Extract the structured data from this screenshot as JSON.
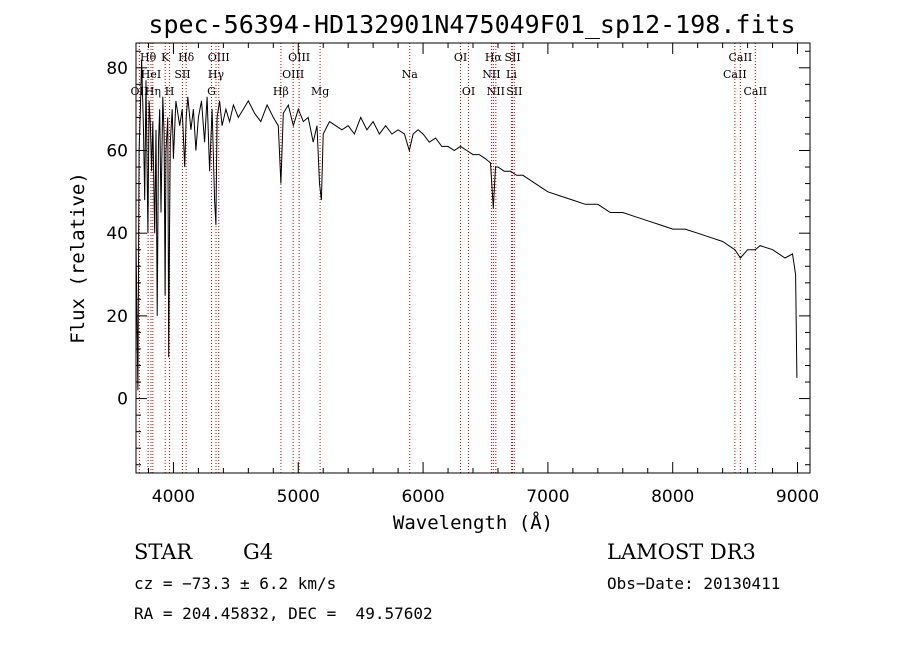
{
  "chart_data": {
    "type": "line",
    "title": "spec-56394-HD132901N475049F01_sp12-198.fits",
    "xlabel": "Wavelength (Å)",
    "ylabel": "Flux (relative)",
    "xlim": [
      3700,
      9100
    ],
    "ylim": [
      -18,
      86
    ],
    "x_ticks": [
      4000,
      5000,
      6000,
      7000,
      8000,
      9000
    ],
    "y_ticks": [
      0,
      20,
      40,
      60,
      80
    ],
    "series": [
      {
        "name": "spectrum",
        "x": [
          3700,
          3715,
          3725,
          3735,
          3745,
          3760,
          3770,
          3780,
          3795,
          3805,
          3815,
          3825,
          3835,
          3850,
          3860,
          3870,
          3880,
          3890,
          3900,
          3915,
          3925,
          3933,
          3940,
          3955,
          3962,
          3968,
          3975,
          3990,
          4000,
          4020,
          4050,
          4070,
          4090,
          4102,
          4115,
          4140,
          4160,
          4180,
          4200,
          4225,
          4250,
          4270,
          4290,
          4310,
          4330,
          4340,
          4350,
          4370,
          4390,
          4420,
          4450,
          4480,
          4520,
          4560,
          4600,
          4650,
          4700,
          4750,
          4800,
          4840,
          4861,
          4880,
          4920,
          4960,
          5000,
          5040,
          5080,
          5120,
          5150,
          5170,
          5185,
          5200,
          5250,
          5300,
          5350,
          5400,
          5450,
          5500,
          5550,
          5600,
          5650,
          5700,
          5750,
          5800,
          5850,
          5890,
          5920,
          5960,
          6000,
          6050,
          6100,
          6150,
          6200,
          6250,
          6300,
          6350,
          6400,
          6450,
          6500,
          6540,
          6563,
          6580,
          6600,
          6650,
          6700,
          6750,
          6800,
          6850,
          6900,
          6950,
          7000,
          7100,
          7200,
          7300,
          7400,
          7500,
          7600,
          7700,
          7800,
          7900,
          8000,
          8100,
          8200,
          8300,
          8400,
          8498,
          8542,
          8600,
          8662,
          8700,
          8800,
          8900,
          8960,
          8985,
          8995
        ],
        "values": [
          38,
          2,
          60,
          70,
          82,
          65,
          48,
          77,
          40,
          72,
          66,
          55,
          67,
          40,
          65,
          20,
          62,
          70,
          45,
          73,
          64,
          25,
          60,
          68,
          10,
          40,
          62,
          70,
          58,
          72,
          66,
          70,
          56,
          68,
          73,
          65,
          70,
          60,
          68,
          72,
          62,
          73,
          55,
          70,
          48,
          42,
          68,
          72,
          66,
          70,
          67,
          71,
          68,
          70,
          72,
          69,
          67,
          71,
          68,
          66,
          52,
          69,
          71,
          66,
          70,
          67,
          68,
          62,
          66,
          52,
          48,
          64,
          67,
          66,
          65,
          66,
          64,
          68,
          65,
          67,
          64,
          66,
          64,
          65,
          64,
          60,
          64,
          65,
          64,
          62,
          63,
          61,
          61,
          60,
          61,
          60,
          59,
          59,
          58,
          57,
          46,
          56,
          56,
          55,
          55,
          54,
          54,
          53,
          52,
          51,
          50,
          49,
          48,
          47,
          47,
          45,
          45,
          44,
          43,
          42,
          41,
          41,
          40,
          39,
          38,
          36,
          34,
          36,
          36,
          37,
          36,
          34,
          35,
          30,
          5
        ]
      }
    ],
    "lines": [
      {
        "name": "Hθ",
        "x": 3797,
        "row": 1
      },
      {
        "name": "OII",
        "x": 3727,
        "row": 3
      },
      {
        "name": "HeI",
        "x": 3820,
        "row": 2
      },
      {
        "name": "Hη",
        "x": 3835,
        "row": 3
      },
      {
        "name": "K",
        "x": 3934,
        "row": 1
      },
      {
        "name": "SII",
        "x": 4072,
        "row": 2
      },
      {
        "name": "H",
        "x": 3969,
        "row": 3
      },
      {
        "name": "Hδ",
        "x": 4102,
        "row": 1
      },
      {
        "name": "OIII",
        "x": 4363,
        "row": 1
      },
      {
        "name": "Hγ",
        "x": 4341,
        "row": 2
      },
      {
        "name": "G",
        "x": 4305,
        "row": 3
      },
      {
        "name": "Hβ",
        "x": 4861,
        "row": 3
      },
      {
        "name": "OIII",
        "x": 5007,
        "row": 1
      },
      {
        "name": "OIII",
        "x": 4959,
        "row": 2
      },
      {
        "name": "Mg",
        "x": 5175,
        "row": 3
      },
      {
        "name": "Na",
        "x": 5893,
        "row": 2
      },
      {
        "name": "OI",
        "x": 6300,
        "row": 1
      },
      {
        "name": "OI",
        "x": 6364,
        "row": 3
      },
      {
        "name": "Hα",
        "x": 6563,
        "row": 1
      },
      {
        "name": "NII",
        "x": 6548,
        "row": 2
      },
      {
        "name": "NII",
        "x": 6583,
        "row": 3
      },
      {
        "name": "SII",
        "x": 6717,
        "row": 1
      },
      {
        "name": "Li",
        "x": 6708,
        "row": 2
      },
      {
        "name": "SII",
        "x": 6731,
        "row": 3
      },
      {
        "name": "CaII",
        "x": 8542,
        "row": 1
      },
      {
        "name": "CaII",
        "x": 8498,
        "row": 2
      },
      {
        "name": "CaII",
        "x": 8662,
        "row": 3
      }
    ]
  },
  "info": {
    "class": "STAR",
    "subclass": "G4",
    "survey": "LAMOST DR3",
    "cz": "cz = −73.3 ± 6.2 km/s",
    "obs_date": "Obs−Date: 20130411",
    "radec": "RA = 204.45832, DEC =  49.57602"
  },
  "colors": {
    "line_marker": "#cc0000",
    "spectrum": "#000000",
    "axes": "#000000"
  }
}
